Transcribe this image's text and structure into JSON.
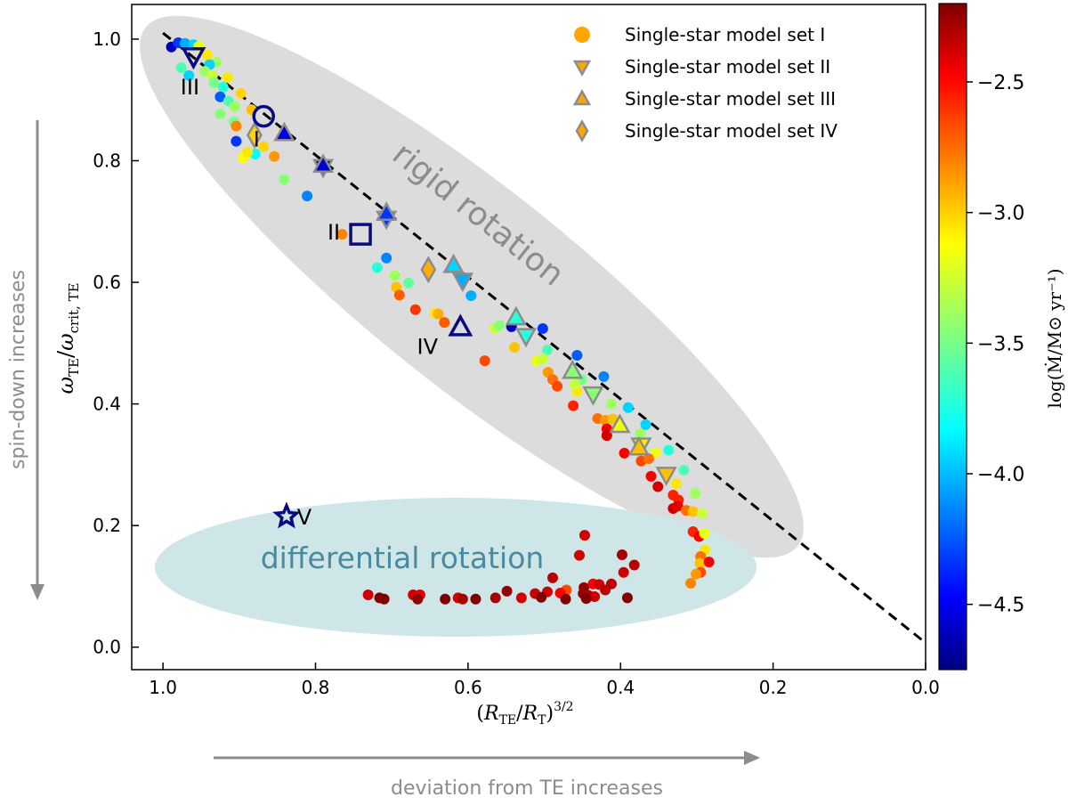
{
  "chart_data": {
    "type": "scatter",
    "xlabel": "(R_TE/R_T)^3/2",
    "ylabel": "ω_TE/ω_crit,TE",
    "xlim": [
      1.041,
      0.0
    ],
    "ylim": [
      -0.037,
      1.057
    ],
    "x_reversed": true,
    "x_ticks": [
      "1.0",
      "0.8",
      "0.6",
      "0.4",
      "0.2",
      "0.0"
    ],
    "x_tick_values": [
      1.0,
      0.8,
      0.6,
      0.4,
      0.2,
      0.0
    ],
    "y_ticks": [
      "0.0",
      "0.2",
      "0.4",
      "0.6",
      "0.8",
      "1.0"
    ],
    "y_tick_values": [
      0.0,
      0.2,
      0.4,
      0.6,
      0.8,
      1.0
    ],
    "grid": false,
    "legend_placement": "top-right",
    "colorbar": {
      "label": "log(Ṁ/M⊙ yr⁻¹)",
      "colormap": "jet",
      "range": [
        -4.75,
        -2.2
      ],
      "ticks": [
        "−2.5",
        "−3.0",
        "−3.5",
        "−4.0",
        "−4.5"
      ],
      "tick_values": [
        -2.5,
        -3.0,
        -3.5,
        -4.0,
        -4.5
      ]
    },
    "legend": [
      {
        "label": "Single-star model set I",
        "marker": "circle"
      },
      {
        "label": "Single-star model set II",
        "marker": "triangle-down"
      },
      {
        "label": "Single-star model set III",
        "marker": "triangle-up"
      },
      {
        "label": "Single-star model set IV",
        "marker": "diamond"
      }
    ],
    "legend_marker_color": "#ffa500",
    "marker_edge_color": "#8c8c8c",
    "reference_line": {
      "style": "dashed",
      "color": "#000000",
      "from": [
        1.0,
        1.01
      ],
      "to": [
        0.005,
        0.012
      ]
    },
    "regions": [
      {
        "label": "rigid rotation",
        "color": "#dcdcdc",
        "text_color": "#8c8c8c"
      },
      {
        "label": "differential rotation",
        "color": "#cfe6e8",
        "text_color": "#4a8aa0"
      }
    ],
    "series": [
      {
        "name": "Single-star model set I",
        "marker": "circle",
        "points": [
          [
            0.989,
            0.987,
            -4.6
          ],
          [
            0.98,
            0.994,
            -4.3
          ],
          [
            0.971,
            0.993,
            -4.0
          ],
          [
            0.96,
            0.991,
            -3.9
          ],
          [
            0.953,
            0.988,
            -3.2
          ],
          [
            0.976,
            0.953,
            -3.6
          ],
          [
            0.966,
            0.94,
            -3.9
          ],
          [
            0.942,
            0.974,
            -3.1
          ],
          [
            0.93,
            0.962,
            -3.4
          ],
          [
            0.939,
            0.958,
            -3.9
          ],
          [
            0.945,
            0.947,
            -3.4
          ],
          [
            0.935,
            0.94,
            -3.3
          ],
          [
            0.915,
            0.937,
            -3.1
          ],
          [
            0.933,
            0.928,
            -3.5
          ],
          [
            0.921,
            0.921,
            -3.7
          ],
          [
            0.898,
            0.911,
            -3.05
          ],
          [
            0.925,
            0.905,
            -4.2
          ],
          [
            0.914,
            0.898,
            -3.6
          ],
          [
            0.906,
            0.889,
            -3.4
          ],
          [
            0.884,
            0.884,
            -3.0
          ],
          [
            0.925,
            0.877,
            -3.45
          ],
          [
            0.907,
            0.864,
            -3.5
          ],
          [
            0.904,
            0.857,
            -2.85
          ],
          [
            0.88,
            0.848,
            -3.15
          ],
          [
            0.904,
            0.832,
            -4.3
          ],
          [
            0.868,
            0.823,
            -3.05
          ],
          [
            0.854,
            0.807,
            -2.9
          ],
          [
            0.879,
            0.811,
            -3.8
          ],
          [
            0.895,
            0.805,
            -3.15
          ],
          [
            0.889,
            0.814,
            -3.1
          ],
          [
            0.841,
            0.769,
            -3.45
          ],
          [
            0.811,
            0.742,
            -4.1
          ],
          [
            0.765,
            0.679,
            -2.85
          ],
          [
            0.707,
            0.64,
            -4.1
          ],
          [
            0.719,
            0.624,
            -3.7
          ],
          [
            0.696,
            0.611,
            -3.4
          ],
          [
            0.678,
            0.599,
            -3.55
          ],
          [
            0.694,
            0.592,
            -3.0
          ],
          [
            0.69,
            0.579,
            -2.75
          ],
          [
            0.669,
            0.555,
            -2.65
          ],
          [
            0.596,
            0.578,
            -4.0
          ],
          [
            0.643,
            0.549,
            -3.1
          ],
          [
            0.639,
            0.548,
            -2.95
          ],
          [
            0.631,
            0.534,
            -2.75
          ],
          [
            0.578,
            0.471,
            -2.7
          ],
          [
            0.565,
            0.524,
            -3.3
          ],
          [
            0.559,
            0.529,
            -3.45
          ],
          [
            0.543,
            0.527,
            -4.6
          ],
          [
            0.502,
            0.524,
            -4.3
          ],
          [
            0.539,
            0.493,
            -3.0
          ],
          [
            0.496,
            0.489,
            -3.6
          ],
          [
            0.51,
            0.471,
            -3.2
          ],
          [
            0.502,
            0.474,
            -3.3
          ],
          [
            0.457,
            0.48,
            -4.2
          ],
          [
            0.422,
            0.445,
            -4.1
          ],
          [
            0.495,
            0.452,
            -2.9
          ],
          [
            0.489,
            0.44,
            -2.8
          ],
          [
            0.483,
            0.429,
            -2.7
          ],
          [
            0.462,
            0.397,
            -2.6
          ],
          [
            0.457,
            0.421,
            -3.1
          ],
          [
            0.451,
            0.44,
            -3.5
          ],
          [
            0.46,
            0.432,
            -3.3
          ],
          [
            0.412,
            0.4,
            -3.4
          ],
          [
            0.39,
            0.394,
            -3.9
          ],
          [
            0.43,
            0.376,
            -2.8
          ],
          [
            0.42,
            0.373,
            -2.9
          ],
          [
            0.41,
            0.375,
            -3.0
          ],
          [
            0.418,
            0.359,
            -2.5
          ],
          [
            0.418,
            0.348,
            -2.4
          ],
          [
            0.367,
            0.366,
            -3.9
          ],
          [
            0.374,
            0.351,
            -3.4
          ],
          [
            0.354,
            0.32,
            -3.2
          ],
          [
            0.337,
            0.324,
            -3.7
          ],
          [
            0.395,
            0.319,
            -2.5
          ],
          [
            0.373,
            0.306,
            -2.7
          ],
          [
            0.363,
            0.31,
            -2.8
          ],
          [
            0.317,
            0.291,
            -3.6
          ],
          [
            0.36,
            0.281,
            -2.5
          ],
          [
            0.351,
            0.264,
            -2.4
          ],
          [
            0.327,
            0.269,
            -3.1
          ],
          [
            0.302,
            0.253,
            -3.4
          ],
          [
            0.331,
            0.25,
            -2.6
          ],
          [
            0.324,
            0.242,
            -2.6
          ],
          [
            0.331,
            0.228,
            -2.4
          ],
          [
            0.325,
            0.232,
            -2.45
          ],
          [
            0.314,
            0.225,
            -2.8
          ],
          [
            0.305,
            0.223,
            -3.0
          ],
          [
            0.293,
            0.22,
            -3.3
          ],
          [
            0.305,
            0.19,
            -2.6
          ],
          [
            0.297,
            0.182,
            -2.5
          ],
          [
            0.29,
            0.187,
            -3.2
          ],
          [
            0.289,
            0.16,
            -3.1
          ],
          [
            0.295,
            0.149,
            -2.8
          ],
          [
            0.296,
            0.138,
            -3.0
          ],
          [
            0.284,
            0.14,
            -2.5
          ],
          [
            0.295,
            0.123,
            -2.7
          ],
          [
            0.301,
            0.12,
            -2.9
          ],
          [
            0.308,
            0.105,
            -2.85
          ],
          [
            0.447,
            0.184,
            -2.4
          ],
          [
            0.454,
            0.151,
            -2.4
          ],
          [
            0.398,
            0.152,
            -2.3
          ],
          [
            0.382,
            0.135,
            -2.35
          ],
          [
            0.396,
            0.123,
            -2.4
          ],
          [
            0.489,
            0.114,
            -2.35
          ],
          [
            0.448,
            0.098,
            -2.25
          ],
          [
            0.436,
            0.104,
            -2.5
          ],
          [
            0.428,
            0.103,
            -2.4
          ],
          [
            0.412,
            0.104,
            -2.35
          ],
          [
            0.42,
            0.094,
            -2.35
          ],
          [
            0.471,
            0.094,
            -2.7
          ],
          [
            0.479,
            0.089,
            -2.5
          ],
          [
            0.496,
            0.091,
            -2.4
          ],
          [
            0.512,
            0.088,
            -2.4
          ],
          [
            0.504,
            0.082,
            -2.2
          ],
          [
            0.549,
            0.092,
            -2.25
          ],
          [
            0.53,
            0.081,
            -2.4
          ],
          [
            0.564,
            0.081,
            -2.3
          ],
          [
            0.59,
            0.079,
            -2.2
          ],
          [
            0.613,
            0.081,
            -2.4
          ],
          [
            0.607,
            0.079,
            -2.3
          ],
          [
            0.63,
            0.079,
            -2.2
          ],
          [
            0.672,
            0.086,
            -2.4
          ],
          [
            0.663,
            0.086,
            -2.45
          ],
          [
            0.666,
            0.079,
            -2.25
          ],
          [
            0.731,
            0.086,
            -2.4
          ],
          [
            0.716,
            0.081,
            -2.2
          ],
          [
            0.71,
            0.079,
            -2.2
          ],
          [
            0.472,
            0.079,
            -2.2
          ],
          [
            0.449,
            0.088,
            -2.25
          ],
          [
            0.442,
            0.085,
            -2.3
          ],
          [
            0.434,
            0.083,
            -2.4
          ],
          [
            0.391,
            0.081,
            -2.2
          ],
          [
            0.445,
            0.08,
            -2.2
          ]
        ]
      },
      {
        "name": "Single-star model set II",
        "marker": "triangle-down",
        "points": [
          [
            0.79,
            0.79,
            -4.55
          ],
          [
            0.707,
            0.705,
            -4.3
          ],
          [
            0.607,
            0.603,
            -4.0
          ],
          [
            0.524,
            0.512,
            -3.7
          ],
          [
            0.436,
            0.416,
            -3.45
          ],
          [
            0.373,
            0.332,
            -3.1
          ],
          [
            0.34,
            0.284,
            -3.0
          ]
        ]
      },
      {
        "name": "Single-star model set III",
        "marker": "triangle-up",
        "points": [
          [
            0.841,
            0.845,
            -4.5
          ],
          [
            0.79,
            0.793,
            -4.55
          ],
          [
            0.707,
            0.714,
            -4.3
          ],
          [
            0.619,
            0.628,
            -3.9
          ],
          [
            0.537,
            0.542,
            -3.7
          ],
          [
            0.463,
            0.454,
            -3.45
          ],
          [
            0.401,
            0.365,
            -3.2
          ],
          [
            0.376,
            0.328,
            -3.0
          ]
        ]
      },
      {
        "name": "Single-star model set IV",
        "marker": "diamond",
        "points": [
          [
            0.88,
            0.842,
            -3.05
          ],
          [
            0.652,
            0.621,
            -2.95
          ]
        ]
      }
    ],
    "reference_models": {
      "color": "#0a0a80",
      "items": [
        {
          "label": "I",
          "marker": "circle",
          "x": 0.868,
          "y": 0.873
        },
        {
          "label": "II",
          "marker": "square",
          "x": 0.741,
          "y": 0.679
        },
        {
          "label": "III",
          "marker": "triangle-down",
          "x": 0.96,
          "y": 0.972
        },
        {
          "label": "IV",
          "marker": "triangle-up",
          "x": 0.61,
          "y": 0.526
        },
        {
          "label": "V",
          "marker": "star",
          "x": 0.838,
          "y": 0.215
        }
      ]
    }
  },
  "annotations": {
    "left_arrow_text": "spin-down increases",
    "bottom_arrow_text": "deviation from TE increases",
    "arrow_color": "#8c8c8c"
  }
}
